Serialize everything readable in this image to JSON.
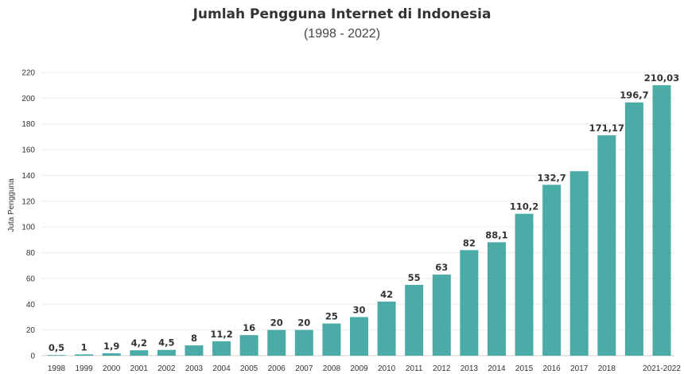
{
  "chart_data": {
    "type": "bar",
    "title": "Jumlah Pengguna Internet di Indonesia",
    "subtitle": "(1998 - 2022)",
    "xlabel": "",
    "ylabel": "Juta Pengguna",
    "categories": [
      "1998",
      "1999",
      "2000",
      "2001",
      "2002",
      "2003",
      "2004",
      "2005",
      "2006",
      "2007",
      "2008",
      "2009",
      "2010",
      "2011",
      "2012",
      "2013",
      "2014",
      "2015",
      "2016",
      "2017",
      "2018",
      "",
      "2021-2022"
    ],
    "values": [
      0.5,
      1,
      1.9,
      4.2,
      4.5,
      8,
      11.2,
      16,
      20,
      20,
      25,
      30,
      42,
      55,
      63,
      82,
      88.1,
      110.2,
      132.7,
      143.26,
      171.17,
      196.7,
      210.03
    ],
    "value_labels": [
      "0,5",
      "1",
      "1,9",
      "4,2",
      "4,5",
      "8",
      "11,2",
      "16",
      "20",
      "20",
      "25",
      "30",
      "42",
      "55",
      "63",
      "82",
      "88,1",
      "110,2",
      "132,7",
      "",
      "171,17",
      "196,7",
      "210,03"
    ],
    "ylim": [
      0,
      225
    ],
    "yticks": [
      0,
      20,
      40,
      60,
      80,
      100,
      120,
      140,
      160,
      180,
      200,
      220
    ],
    "grid": true,
    "bar_color": "#4aaba7"
  }
}
